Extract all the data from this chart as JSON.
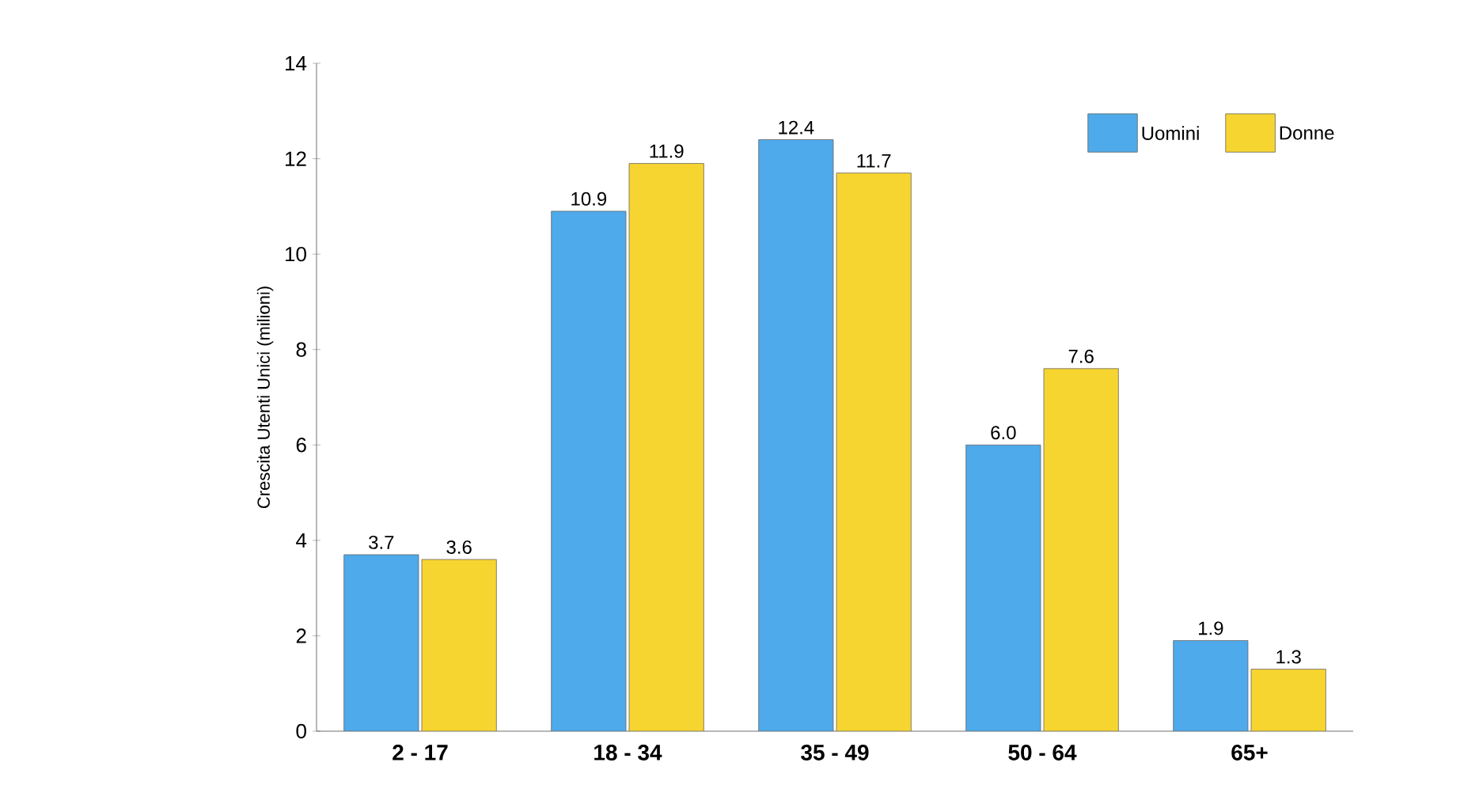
{
  "chart_data": {
    "type": "bar",
    "ylabel": "Crescita Utenti Unici (milioni)",
    "categories": [
      "2 - 17",
      "18 - 34",
      "35 - 49",
      "50 - 64",
      "65+"
    ],
    "series": [
      {
        "name": "Uomini",
        "color": "#4eaaea",
        "values": [
          3.7,
          10.9,
          12.4,
          6.0,
          1.9
        ],
        "value_labels": [
          "3.7",
          "10.9",
          "12.4",
          "6.0",
          "1.9"
        ]
      },
      {
        "name": "Donne",
        "color": "#f7d531",
        "values": [
          3.6,
          11.9,
          11.7,
          7.6,
          1.3
        ],
        "value_labels": [
          "3.6",
          "11.9",
          "11.7",
          "7.6",
          "1.3"
        ]
      }
    ],
    "ylim": [
      0,
      14
    ],
    "yticks": [
      0,
      2,
      4,
      6,
      8,
      10,
      12,
      14
    ],
    "legend": "top right",
    "grid": false
  }
}
